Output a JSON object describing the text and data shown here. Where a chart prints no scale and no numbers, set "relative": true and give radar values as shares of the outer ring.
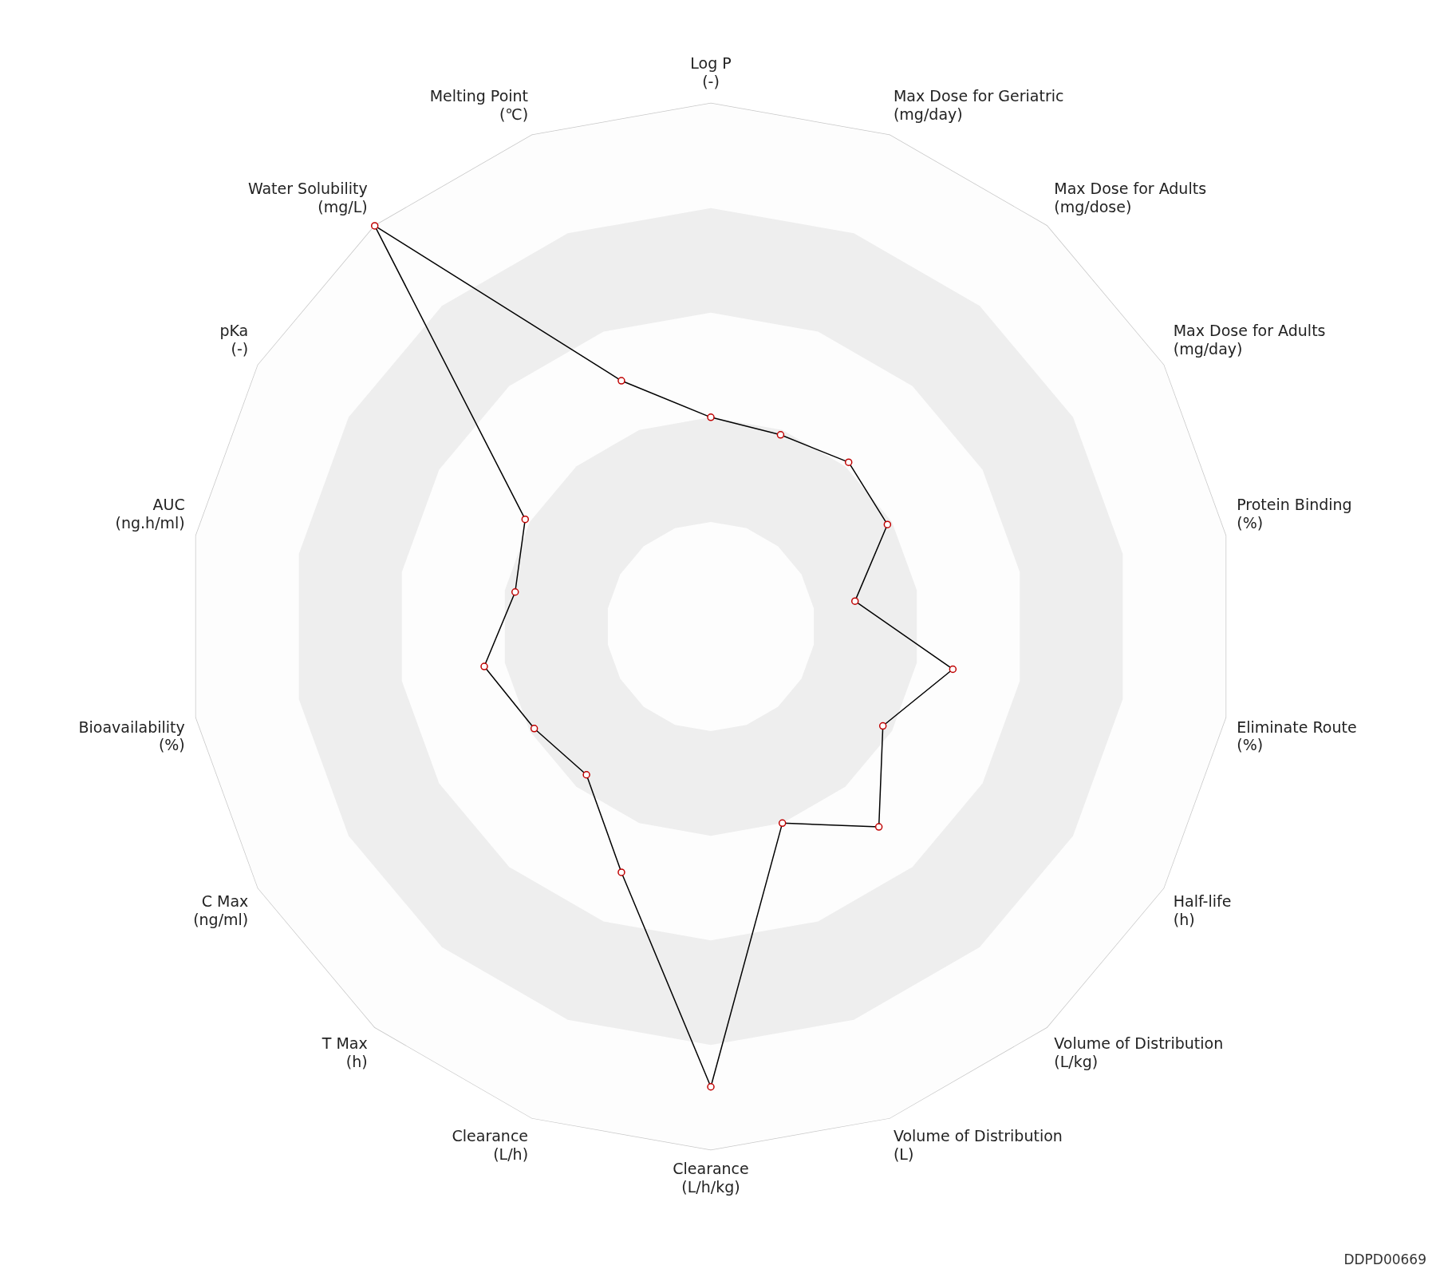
{
  "chart_data": {
    "type": "radar",
    "relative": true,
    "categories": [
      "Log P\n(-)",
      "Max Dose for Geriatric\n(mg/day)",
      "Max Dose for Adults\n(mg/dose)",
      "Max Dose for Adults\n(mg/day)",
      "Protein Binding\n(%)",
      "Eliminate Route\n(%)",
      "Half-life\n(h)",
      "Volume of Distribution\n(L/kg)",
      "Volume of Distribution\n(L)",
      "Clearance\n(L/h/kg)",
      "Clearance\n(L/h)",
      "T Max\n(h)",
      "C Max\n(ng/ml)",
      "Bioavailability\n(%)",
      "AUC\n(ng.h/ml)",
      "pKa\n(-)",
      "Water Solubility\n(mg/L)",
      "Melting Point\n(℃)"
    ],
    "series": [
      {
        "color": "#000000",
        "values": [
          0.4,
          0.39,
          0.41,
          0.39,
          0.28,
          0.47,
          0.38,
          0.5,
          0.4,
          0.88,
          0.5,
          0.37,
          0.39,
          0.44,
          0.38,
          0.41,
          1.0,
          0.5
        ]
      }
    ],
    "marker": "circle",
    "grid": true,
    "legend": false,
    "annotations": [
      "DDPD00669"
    ]
  }
}
